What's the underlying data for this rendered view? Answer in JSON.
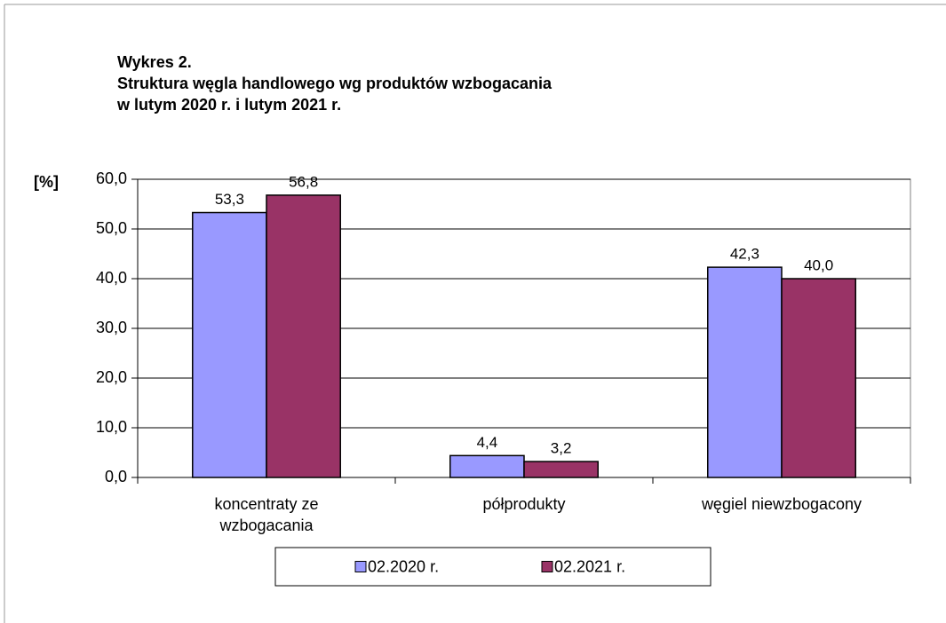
{
  "chart_data": {
    "type": "bar",
    "title": [
      "Wykres 2.",
      "Struktura węgla handlowego wg produktów wzbogacania",
      "w lutym 2020 r. i lutym 2021 r."
    ],
    "y_label": "[%]",
    "categories": [
      "koncentraty ze wzbogacania",
      "półprodukty",
      "węgiel niewzbogacony"
    ],
    "series": [
      {
        "name": "02.2020 r.",
        "color": "#9999ff",
        "values": [
          53.3,
          4.4,
          42.3
        ],
        "value_labels": [
          "53,3",
          "4,4",
          "42,3"
        ]
      },
      {
        "name": "02.2021 r.",
        "color": "#993366",
        "values": [
          56.8,
          3.2,
          40.0
        ],
        "value_labels": [
          "56,8",
          "3,2",
          "40,0"
        ]
      }
    ],
    "ylim": [
      0,
      60
    ],
    "yticks": [
      {
        "value": 0,
        "label": "0,0"
      },
      {
        "value": 10,
        "label": "10,0"
      },
      {
        "value": 20,
        "label": "20,0"
      },
      {
        "value": 30,
        "label": "30,0"
      },
      {
        "value": 40,
        "label": "40,0"
      },
      {
        "value": 50,
        "label": "50,0"
      },
      {
        "value": 60,
        "label": "60,0"
      }
    ],
    "grid": true,
    "legend": "bottom"
  }
}
